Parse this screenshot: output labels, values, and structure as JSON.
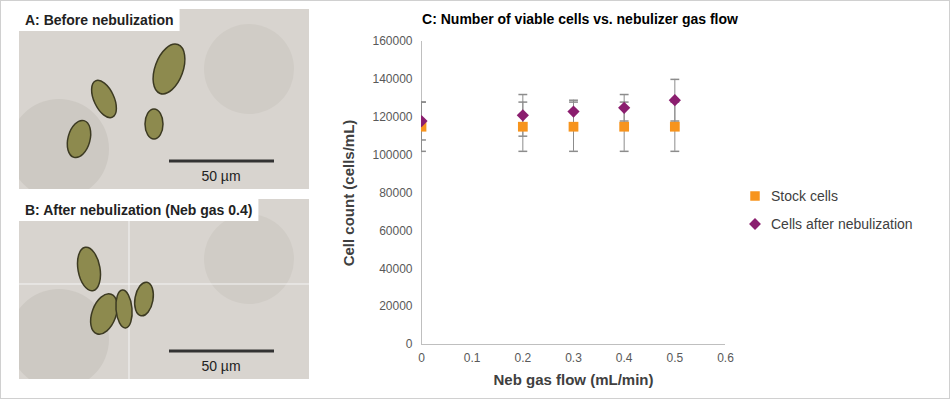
{
  "chart_data": {
    "type": "scatter",
    "title": "C: Number of viable cells vs. nebulizer gas flow",
    "x_label": "Neb gas flow (mL/min)",
    "y_label": "Cell count (cells/mL)",
    "x": [
      0,
      0.2,
      0.3,
      0.4,
      0.5
    ],
    "series": [
      {
        "name": "Stock cells",
        "color": "#f7941d",
        "marker": "square",
        "values": [
          115000,
          115000,
          115000,
          115000,
          115000
        ],
        "errors": [
          13000,
          13000,
          13000,
          13000,
          13000
        ]
      },
      {
        "name": "Cells after nebulization",
        "color": "#8b1e6f",
        "marker": "diamond",
        "values": [
          118000,
          121000,
          123000,
          125000,
          129000
        ],
        "errors": [
          10000,
          11000,
          6000,
          7000,
          11000
        ]
      }
    ],
    "xlim": [
      0,
      0.6
    ],
    "xticks": [
      0,
      0.1,
      0.2,
      0.3,
      0.4,
      0.5,
      0.6
    ],
    "ylim": [
      0,
      160000
    ],
    "yticks": [
      0,
      20000,
      40000,
      60000,
      80000,
      100000,
      120000,
      140000,
      160000
    ],
    "grid": false,
    "legend": "right"
  },
  "panels": [
    {
      "title": "A: Before nebulization",
      "scale_bar": "50 µm"
    },
    {
      "title": "B: After nebulization (Neb gas 0.4)",
      "scale_bar": "50 µm"
    }
  ]
}
